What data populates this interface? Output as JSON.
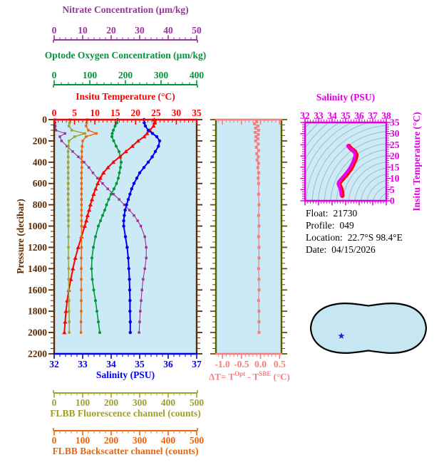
{
  "colors": {
    "panel_bg": "#CBEAF5",
    "frame_brown": "#5B2A00",
    "nitrate": "#993399",
    "oxygen": "#009639",
    "temperature": "#FF0000",
    "salinity": "#0000EE",
    "fluorescence": "#9E9E2C",
    "backscatter": "#E8650F",
    "delta_t": "#F87C7C",
    "delta_frame": "#5C5C00",
    "ts_magenta": "#DD00DD",
    "ts_curve": "#EE00EE",
    "ts_curve_edge": "#FF0000",
    "isopycnal": "#9FB4BF",
    "map_ocean": "#C6E7F2",
    "map_land": "#F5BDB8",
    "map_outline": "#000000",
    "map_star": "#2020CC",
    "info_text": "#000000"
  },
  "axes_titles": {
    "nitrate": "Nitrate Concentration (µm/kg)",
    "oxygen": "Optode Oxygen Concentration (µm/kg)",
    "temperature": "Insitu Temperature (°C)",
    "salinity": "Salinity (PSU)",
    "pressure": "Pressure (decibar)",
    "fluorescence": "FLBB Fluorescence channel (counts)",
    "backscatter": "FLBB Backscatter channel (counts)",
    "ts_salinity": "Salinity (PSU)",
    "ts_temperature": "Insitu Temperature (°C)",
    "delta_t_parts": {
      "p1": "ΔT= T",
      "sup1": "Opt",
      "p2": " - T",
      "sup2": "SBE",
      "p3": " (°C)"
    }
  },
  "info_block": {
    "rows": [
      {
        "label": "Float:",
        "value": "21730"
      },
      {
        "label": "Profile:",
        "value": "049"
      },
      {
        "label": "Location:",
        "value": "22.7°S  98.4°E"
      },
      {
        "label": "Date:",
        "value": "04/15/2026"
      }
    ]
  },
  "chart_data": [
    {
      "type": "line",
      "name": "profile-plot",
      "description": "Vertical profiles vs pressure, six overlaid x-axes",
      "y_axis": {
        "label": "Pressure (decibar)",
        "range": [
          0,
          2200
        ],
        "tick_step": 200,
        "minor_step": 50,
        "ticks": [
          0,
          200,
          400,
          600,
          800,
          1000,
          1200,
          1400,
          1600,
          1800,
          2000,
          2200
        ]
      },
      "x_axes": {
        "nitrate": {
          "label": "Nitrate Concentration (µm/kg)",
          "range": [
            0,
            50
          ],
          "ticks": [
            0,
            10,
            20,
            30,
            40,
            50
          ],
          "minor_step": 2
        },
        "oxygen": {
          "label": "Optode Oxygen Concentration (µm/kg)",
          "range": [
            0,
            400
          ],
          "ticks": [
            0,
            100,
            200,
            300,
            400
          ],
          "minor_step": 20
        },
        "temperature": {
          "label": "Insitu Temperature (°C)",
          "range": [
            0,
            35
          ],
          "ticks": [
            0,
            5,
            10,
            15,
            20,
            25,
            30,
            35
          ],
          "minor_step": 1
        },
        "salinity": {
          "label": "Salinity (PSU)",
          "range": [
            32,
            37
          ],
          "ticks": [
            32,
            33,
            34,
            35,
            36,
            37
          ],
          "minor_step": 0.2
        },
        "fluorescence": {
          "label": "FLBB Fluorescence channel (counts)",
          "range": [
            0,
            500
          ],
          "ticks": [
            0,
            100,
            200,
            300,
            400,
            500
          ],
          "minor_step": 20
        },
        "backscatter": {
          "label": "FLBB Backscatter channel (counts)",
          "range": [
            0,
            500
          ],
          "ticks": [
            0,
            100,
            200,
            300,
            400,
            500
          ],
          "minor_step": 20
        }
      },
      "pressure": [
        0,
        30,
        60,
        100,
        130,
        160,
        200,
        250,
        300,
        350,
        400,
        450,
        500,
        550,
        600,
        650,
        700,
        750,
        800,
        850,
        900,
        950,
        1000,
        1100,
        1200,
        1300,
        1400,
        1500,
        1600,
        1700,
        1800,
        1900,
        2000
      ],
      "series": [
        {
          "name": "nitrate",
          "marker": "square",
          "values": [
            0.3,
            0.3,
            0.4,
            0.6,
            3.8,
            2.0,
            2.6,
            4.5,
            6.5,
            8.5,
            10.5,
            12.2,
            13.6,
            15.2,
            17.0,
            18.8,
            20.8,
            22.8,
            24.6,
            26.4,
            28.0,
            29.3,
            30.4,
            31.8,
            32.3,
            32.3,
            31.8,
            31.2,
            30.8,
            30.5,
            30.2,
            30.0,
            29.8
          ]
        },
        {
          "name": "oxygen",
          "marker": "circle",
          "values": [
            178,
            176,
            171,
            166,
            163,
            162,
            167,
            174,
            182,
            186,
            188,
            186,
            183,
            180,
            175,
            168,
            160,
            153,
            147,
            142,
            136,
            130,
            124,
            116,
            110,
            106,
            105,
            107,
            111,
            116,
            120,
            124,
            128
          ]
        },
        {
          "name": "temperature",
          "marker": "triangle",
          "values": [
            24.6,
            24.6,
            24.4,
            23.5,
            22.8,
            22.1,
            20.6,
            19.2,
            17.6,
            16.1,
            14.5,
            13.2,
            12.1,
            11.3,
            10.7,
            10.2,
            9.7,
            9.3,
            8.9,
            8.6,
            8.2,
            7.9,
            7.5,
            6.7,
            5.9,
            5.2,
            4.6,
            4.1,
            3.6,
            3.2,
            2.9,
            2.7,
            2.5
          ]
        },
        {
          "name": "salinity",
          "marker": "circle",
          "values": [
            35.15,
            35.16,
            35.2,
            35.3,
            35.45,
            35.6,
            35.7,
            35.66,
            35.55,
            35.44,
            35.3,
            35.15,
            35.0,
            34.9,
            34.8,
            34.72,
            34.66,
            34.6,
            34.54,
            34.49,
            34.46,
            34.44,
            34.44,
            34.5,
            34.56,
            34.6,
            34.62,
            34.64,
            34.65,
            34.66,
            34.66,
            34.67,
            34.67
          ]
        },
        {
          "name": "fluorescence",
          "marker": "square",
          "values": [
            56,
            54,
            52,
            62,
            108,
            72,
            52,
            50,
            49,
            49,
            49,
            49,
            49,
            49,
            49,
            49,
            49,
            49,
            49,
            50,
            50,
            50,
            50,
            50,
            50,
            50,
            51,
            51,
            51,
            52,
            52,
            53,
            53
          ]
        },
        {
          "name": "backscatter",
          "marker": "square",
          "values": [
            116,
            114,
            112,
            120,
            148,
            112,
            100,
            98,
            97,
            97,
            97,
            97,
            96,
            96,
            96,
            96,
            96,
            96,
            96,
            96,
            96,
            96,
            96,
            96,
            96,
            95,
            95,
            95,
            95,
            95,
            95,
            94,
            94
          ]
        }
      ]
    },
    {
      "type": "line",
      "name": "delta-t-panel",
      "x_axis": {
        "label": "ΔT= TOpt - TSBE (°C)",
        "range": [
          -1.17,
          0.55
        ],
        "ticks": [
          "-1.0",
          "-0.5",
          "0.0",
          "0.5"
        ],
        "tick_values": [
          -1.0,
          -0.5,
          0.0,
          0.5
        ],
        "minor_step": 0.1
      },
      "y_axis": {
        "range": [
          0,
          2200
        ],
        "tick_step": 200,
        "minor_step": 50
      },
      "pressure": [
        20,
        40,
        60,
        80,
        100,
        120,
        140,
        160,
        180,
        200,
        230,
        260,
        290,
        320,
        350,
        380,
        410,
        450,
        500,
        550,
        600,
        700,
        800,
        900,
        1000,
        1100,
        1200,
        1300,
        1400,
        1500,
        1600,
        1700,
        1800,
        1900,
        2000
      ],
      "values": [
        -0.1,
        -0.16,
        -0.07,
        -0.13,
        -0.05,
        -0.14,
        -0.06,
        -0.12,
        -0.07,
        -0.13,
        -0.06,
        -0.11,
        -0.05,
        -0.1,
        -0.06,
        -0.09,
        -0.05,
        -0.07,
        -0.05,
        -0.06,
        -0.05,
        -0.05,
        -0.04,
        -0.05,
        -0.04,
        -0.05,
        -0.04,
        -0.04,
        -0.05,
        -0.04,
        -0.04,
        -0.05,
        -0.04,
        -0.04,
        -0.04
      ]
    },
    {
      "type": "line",
      "name": "ts-diagram",
      "x_axis": {
        "label": "Salinity (PSU)",
        "range": [
          32,
          38
        ],
        "ticks": [
          32,
          33,
          34,
          35,
          36,
          37,
          38
        ],
        "minor_step": 0.2
      },
      "y_axis": {
        "label": "Insitu Temperature (°C)",
        "range": [
          0,
          35
        ],
        "ticks": [
          0,
          5,
          10,
          15,
          20,
          25,
          30,
          35
        ],
        "minor_step": 1
      },
      "background": "gray isopycnal contour arcs on light blue",
      "temperature": [
        24.6,
        23.5,
        22.1,
        20.6,
        19.2,
        17.6,
        16.1,
        14.5,
        12.1,
        10.7,
        9.7,
        8.9,
        8.2,
        7.5,
        6.7,
        5.9,
        5.2,
        4.6,
        4.1,
        3.6,
        3.2,
        2.9,
        2.7,
        2.5
      ],
      "salinity": [
        35.15,
        35.3,
        35.6,
        35.7,
        35.66,
        35.55,
        35.44,
        35.3,
        35.0,
        34.8,
        34.66,
        34.54,
        34.46,
        34.44,
        34.5,
        34.56,
        34.6,
        34.62,
        34.64,
        34.65,
        34.66,
        34.66,
        34.67,
        34.67
      ]
    },
    {
      "type": "map",
      "name": "world-map",
      "projection": "global pseudocylindrical, Pacific-centered",
      "marker": {
        "shape": "star",
        "note": "float position 22.7°S 98.4°E, Indian Ocean west of Australia"
      }
    }
  ]
}
